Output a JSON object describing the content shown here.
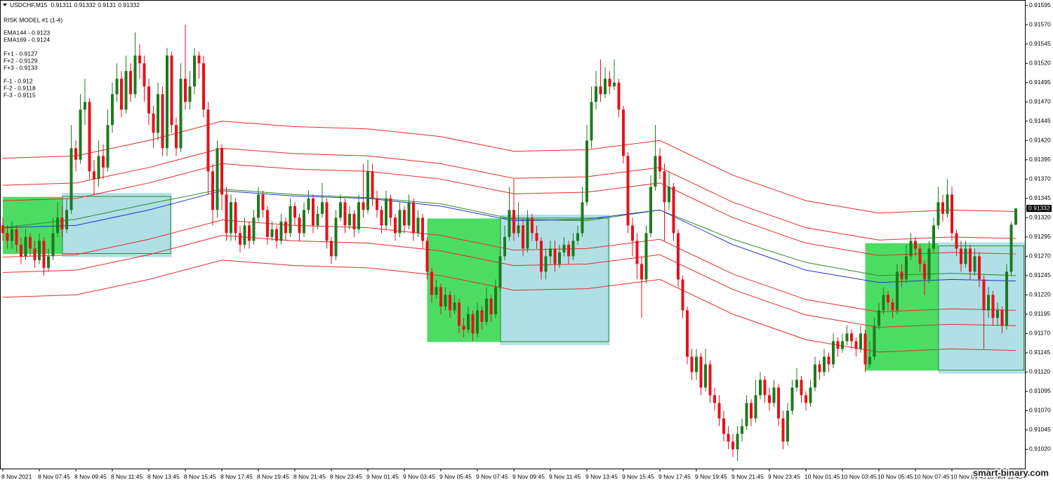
{
  "chart_data": {
    "type": "candlestick",
    "symbol": "USDCHF,M15",
    "info": [
      "RISK MODEL #1 (1-4)",
      "EMA144 - 0.9123",
      "EMA169 - 0.9124",
      "F+1 - 0.9127",
      "F+2 - 0.9129",
      "F+3 - 0.9133",
      "F-1 - 0.912",
      "F-2 - 0.9118",
      "F-3 - 0.9115"
    ],
    "watermark": "smart-binary.com",
    "up_color": "#1d7a1d",
    "down_color": "#e8101a",
    "ylim": [
      0.90995,
      0.91602
    ],
    "yticks": [
      0.91595,
      {
        "value": 0.9157,
        "label": "0.91570"
      },
      0.91545,
      {
        "value": 0.9152,
        "label": "0.91520"
      },
      0.91495,
      {
        "value": 0.9147,
        "label": "0.91470"
      },
      0.91445,
      {
        "value": 0.9142,
        "label": "0.91420"
      },
      0.91395,
      {
        "value": 0.9137,
        "label": "0.91370"
      },
      0.91345,
      {
        "value": 0.9132,
        "label": "0.91320"
      },
      0.91295,
      {
        "value": 0.9127,
        "label": "0.91270"
      },
      0.91245,
      {
        "value": 0.9122,
        "label": "0.91220"
      },
      0.91195,
      {
        "value": 0.9117,
        "label": "0.91170"
      },
      0.91145,
      {
        "value": 0.9112,
        "label": "0.91120"
      },
      0.91095,
      {
        "value": 0.9107,
        "label": "0.91070"
      },
      0.91045,
      {
        "value": 0.9102,
        "label": "0.91020"
      }
    ],
    "xticks": [
      {
        "value": 0,
        "label": "8 Nov 2021"
      },
      {
        "value": 8,
        "label": "8 Nov 07:45"
      },
      {
        "value": 16,
        "label": "8 Nov 09:45"
      },
      {
        "value": 24,
        "label": "8 Nov 11:45"
      },
      {
        "value": 32,
        "label": "8 Nov 13:45"
      },
      {
        "value": 40,
        "label": "8 Nov 15:45"
      },
      {
        "value": 48,
        "label": "8 Nov 17:45"
      },
      {
        "value": 56,
        "label": "8 Nov 19:45"
      },
      {
        "value": 64,
        "label": "8 Nov 21:45"
      },
      {
        "value": 72,
        "label": "8 Nov 23:45"
      },
      {
        "value": 80,
        "label": "9 Nov 01:45"
      },
      {
        "value": 88,
        "label": "9 Nov 03:45"
      },
      {
        "value": 96,
        "label": "9 Nov 05:45"
      },
      {
        "value": 104,
        "label": "9 Nov 07:45"
      },
      {
        "value": 112,
        "label": "9 Nov 09:45"
      },
      {
        "value": 120,
        "label": "9 Nov 11:45"
      },
      {
        "value": 128,
        "label": "9 Nov 13:45"
      },
      {
        "value": 136,
        "label": "9 Nov 15:45"
      },
      {
        "value": 144,
        "label": "9 Nov 17:45"
      },
      {
        "value": 152,
        "label": "9 Nov 19:45"
      },
      {
        "value": 160,
        "label": "9 Nov 21:45"
      },
      {
        "value": 168,
        "label": "9 Nov 23:45"
      },
      {
        "value": 176,
        "label": "10 Nov 01:45"
      },
      {
        "value": 184,
        "label": "10 Nov 03:45"
      },
      {
        "value": 192,
        "label": "10 Nov 05:45"
      },
      {
        "value": 200,
        "label": "10 Nov 07:45"
      },
      {
        "value": 208,
        "label": "10 Nov 09:45"
      },
      {
        "value": 216,
        "label": "10 Nov 11:45"
      }
    ],
    "first_open": 0.9131,
    "close": [
      0.913,
      0.9129,
      0.91305,
      0.91285,
      0.9127,
      0.91295,
      0.9128,
      0.91265,
      0.9129,
      0.91255,
      0.9127,
      0.913,
      0.9132,
      0.91305,
      0.9133,
      0.9141,
      0.91395,
      0.9146,
      0.9147,
      0.9138,
      0.9137,
      0.914,
      0.91385,
      0.9144,
      0.9148,
      0.915,
      0.9146,
      0.9151,
      0.9148,
      0.9153,
      0.9152,
      0.9149,
      0.91455,
      0.9143,
      0.9148,
      0.9141,
      0.9153,
      0.9144,
      0.9141,
      0.915,
      0.9147,
      0.9149,
      0.9153,
      0.9152,
      0.9146,
      0.9138,
      0.9133,
      0.9141,
      0.9135,
      0.913,
      0.9134,
      0.913,
      0.91285,
      0.9131,
      0.9129,
      0.9132,
      0.9135,
      0.9133,
      0.91295,
      0.91305,
      0.9129,
      0.91315,
      0.913,
      0.91335,
      0.9132,
      0.913,
      0.9133,
      0.91345,
      0.9131,
      0.91325,
      0.9134,
      0.9129,
      0.9127,
      0.9132,
      0.9134,
      0.9131,
      0.91325,
      0.91305,
      0.9134,
      0.9133,
      0.9138,
      0.91345,
      0.9133,
      0.9131,
      0.91345,
      0.9132,
      0.913,
      0.9133,
      0.9131,
      0.9134,
      0.913,
      0.9132,
      0.9129,
      0.9125,
      0.9122,
      0.9123,
      0.91205,
      0.9122,
      0.912,
      0.9121,
      0.9118,
      0.91175,
      0.91195,
      0.9117,
      0.912,
      0.91185,
      0.91215,
      0.91195,
      0.9123,
      0.9127,
      0.91295,
      0.9133,
      0.913,
      0.9131,
      0.9128,
      0.9132,
      0.913,
      0.9129,
      0.9125,
      0.9127,
      0.9128,
      0.9126,
      0.91275,
      0.91285,
      0.9127,
      0.9129,
      0.913,
      0.9134,
      0.9142,
      0.9147,
      0.9149,
      0.9148,
      0.915,
      0.9149,
      0.91495,
      0.9146,
      0.914,
      0.9131,
      0.9129,
      0.9126,
      0.9124,
      0.913,
      0.9136,
      0.914,
      0.9138,
      0.9134,
      0.9136,
      0.913,
      0.9124,
      0.912,
      0.9114,
      0.9112,
      0.9114,
      0.911,
      0.9113,
      0.9109,
      0.9108,
      0.9106,
      0.9104,
      0.9103,
      0.9102,
      0.9104,
      0.9105,
      0.9108,
      0.9106,
      0.9109,
      0.9111,
      0.9109,
      0.9108,
      0.911,
      0.9106,
      0.9103,
      0.9107,
      0.911,
      0.9111,
      0.9109,
      0.9108,
      0.911,
      0.9113,
      0.9112,
      0.9114,
      0.9113,
      0.9116,
      0.9115,
      0.9116,
      0.9117,
      0.9116,
      0.9115,
      0.9117,
      0.9113,
      0.9114,
      0.9118,
      0.912,
      0.9122,
      0.9121,
      0.912,
      0.9125,
      0.9124,
      0.9127,
      0.9129,
      0.9128,
      0.9126,
      0.9124,
      0.9128,
      0.9131,
      0.9134,
      0.91325,
      0.9135,
      0.913,
      0.9128,
      0.9126,
      0.9128,
      0.9125,
      0.9127,
      0.9124,
      0.912,
      0.9122,
      0.9119,
      0.912,
      0.9118,
      0.9125,
      0.91311,
      0.91332
    ],
    "high": [
      0.9132,
      0.9131,
      0.91315,
      0.9131,
      0.91295,
      0.91305,
      0.913,
      0.9129,
      0.913,
      0.91295,
      0.9128,
      0.9132,
      0.9134,
      0.91335,
      0.91345,
      0.9144,
      0.9142,
      0.9148,
      0.915,
      0.91475,
      0.91395,
      0.9142,
      0.91415,
      0.9146,
      0.91495,
      0.9152,
      0.9151,
      0.9153,
      0.9152,
      0.9156,
      0.91545,
      0.9153,
      0.915,
      0.91465,
      0.91495,
      0.9149,
      0.9154,
      0.91535,
      0.9145,
      0.9152,
      0.9157,
      0.9151,
      0.9154,
      0.91535,
      0.9153,
      0.9147,
      0.9139,
      0.9142,
      0.91415,
      0.9136,
      0.9135,
      0.91345,
      0.9131,
      0.9132,
      0.91315,
      0.9133,
      0.9136,
      0.91355,
      0.91335,
      0.91315,
      0.9131,
      0.91325,
      0.9132,
      0.91345,
      0.9134,
      0.91325,
      0.9134,
      0.91355,
      0.9135,
      0.91335,
      0.91365,
      0.91345,
      0.91295,
      0.9133,
      0.9135,
      0.91345,
      0.91335,
      0.9133,
      0.9135,
      0.9139,
      0.91395,
      0.9139,
      0.91355,
      0.91335,
      0.91355,
      0.9135,
      0.91325,
      0.9134,
      0.91335,
      0.9135,
      0.91345,
      0.9133,
      0.91325,
      0.91295,
      0.91255,
      0.9124,
      0.91235,
      0.9123,
      0.91225,
      0.9122,
      0.91215,
      0.9119,
      0.91205,
      0.912,
      0.9121,
      0.91205,
      0.9123,
      0.9122,
      0.9124,
      0.9128,
      0.9131,
      0.9136,
      0.9137,
      0.9134,
      0.9132,
      0.9133,
      0.91325,
      0.9131,
      0.91295,
      0.9128,
      0.9129,
      0.9129,
      0.91285,
      0.91295,
      0.9129,
      0.913,
      0.9131,
      0.9136,
      0.9144,
      0.9149,
      0.9151,
      0.91525,
      0.91515,
      0.9151,
      0.91525,
      0.915,
      0.91465,
      0.91405,
      0.9132,
      0.913,
      0.9127,
      0.9131,
      0.91375,
      0.9144,
      0.9141,
      0.9139,
      0.9138,
      0.91365,
      0.91305,
      0.91245,
      0.91205,
      0.9115,
      0.9115,
      0.91145,
      0.9115,
      0.91135,
      0.911,
      0.9109,
      0.9107,
      0.9105,
      0.9104,
      0.9105,
      0.9106,
      0.9109,
      0.91085,
      0.9111,
      0.9112,
      0.91115,
      0.911,
      0.9111,
      0.91105,
      0.9107,
      0.9108,
      0.9111,
      0.91125,
      0.91115,
      0.91095,
      0.9111,
      0.9114,
      0.91135,
      0.9115,
      0.91145,
      0.9117,
      0.91165,
      0.9117,
      0.9118,
      0.91175,
      0.91165,
      0.9118,
      0.91175,
      0.9116,
      0.9119,
      0.9121,
      0.9123,
      0.91225,
      0.91215,
      0.9126,
      0.9126,
      0.91285,
      0.913,
      0.91295,
      0.91285,
      0.91265,
      0.9129,
      0.9132,
      0.9136,
      0.9135,
      0.9137,
      0.9136,
      0.91305,
      0.9129,
      0.9129,
      0.91285,
      0.9128,
      0.91275,
      0.91245,
      0.9123,
      0.91225,
      0.9121,
      0.91205,
      0.9126,
      0.91315,
      0.91332
    ],
    "low": [
      0.9129,
      0.9128,
      0.9128,
      0.91275,
      0.9126,
      0.91265,
      0.9127,
      0.91255,
      0.9126,
      0.91245,
      0.9125,
      0.91265,
      0.91295,
      0.91295,
      0.913,
      0.91325,
      0.9138,
      0.9139,
      0.9144,
      0.9137,
      0.9135,
      0.9136,
      0.9137,
      0.9138,
      0.9143,
      0.9147,
      0.9145,
      0.91455,
      0.9147,
      0.91475,
      0.915,
      0.9147,
      0.9144,
      0.9141,
      0.9142,
      0.914,
      0.914,
      0.9143,
      0.914,
      0.91405,
      0.9146,
      0.9146,
      0.9148,
      0.915,
      0.9145,
      0.9135,
      0.9131,
      0.9132,
      0.9133,
      0.9129,
      0.9129,
      0.9129,
      0.91275,
      0.9128,
      0.9128,
      0.91285,
      0.91315,
      0.9132,
      0.91285,
      0.9129,
      0.9128,
      0.91285,
      0.9129,
      0.91295,
      0.9131,
      0.9129,
      0.91295,
      0.91325,
      0.913,
      0.91305,
      0.9132,
      0.9128,
      0.9126,
      0.91265,
      0.91315,
      0.913,
      0.91305,
      0.91295,
      0.913,
      0.9132,
      0.91325,
      0.91335,
      0.9132,
      0.913,
      0.91305,
      0.9131,
      0.9129,
      0.91295,
      0.913,
      0.91305,
      0.9129,
      0.91295,
      0.9128,
      0.9124,
      0.9121,
      0.91215,
      0.91195,
      0.912,
      0.9119,
      0.91195,
      0.9117,
      0.91165,
      0.9117,
      0.9116,
      0.91165,
      0.91175,
      0.9118,
      0.91185,
      0.9119,
      0.91225,
      0.91265,
      0.9129,
      0.9129,
      0.91295,
      0.9127,
      0.91275,
      0.9129,
      0.9128,
      0.9124,
      0.9124,
      0.9126,
      0.9125,
      0.91255,
      0.9127,
      0.9126,
      0.91265,
      0.91285,
      0.91295,
      0.91335,
      0.9141,
      0.9146,
      0.9147,
      0.91475,
      0.9148,
      0.91485,
      0.9145,
      0.9139,
      0.913,
      0.9127,
      0.9124,
      0.9119,
      0.91235,
      0.91295,
      0.91355,
      0.9137,
      0.9129,
      0.9133,
      0.9129,
      0.9123,
      0.9119,
      0.9113,
      0.9111,
      0.9111,
      0.9109,
      0.91095,
      0.9108,
      0.9107,
      0.9105,
      0.9103,
      0.9102,
      0.9101,
      0.91005,
      0.9103,
      0.91045,
      0.9105,
      0.91055,
      0.91085,
      0.9108,
      0.9107,
      0.91075,
      0.9105,
      0.9102,
      0.91025,
      0.91065,
      0.91095,
      0.9108,
      0.9107,
      0.91075,
      0.91095,
      0.9111,
      0.91115,
      0.9112,
      0.91125,
      0.9114,
      0.91145,
      0.91155,
      0.9115,
      0.9114,
      0.91145,
      0.9112,
      0.91125,
      0.91135,
      0.91175,
      0.91195,
      0.912,
      0.9119,
      0.91195,
      0.9123,
      0.91235,
      0.91265,
      0.9127,
      0.9125,
      0.9122,
      0.91235,
      0.91275,
      0.91305,
      0.91315,
      0.9132,
      0.9129,
      0.9127,
      0.9125,
      0.91255,
      0.9124,
      0.91245,
      0.9123,
      0.9115,
      0.9119,
      0.9118,
      0.9118,
      0.9117,
      0.91175,
      0.91245,
      0.9131
    ],
    "line_x": [
      0,
      16,
      32,
      48,
      64,
      80,
      96,
      112,
      128,
      144,
      160,
      176,
      192,
      208,
      222
    ],
    "lines": [
      {
        "color": "#e8282a",
        "values": [
          0.91397,
          0.914,
          0.9142,
          0.91445,
          0.91438,
          0.91435,
          0.91425,
          0.91406,
          0.91408,
          0.9142,
          0.91375,
          0.91342,
          0.91326,
          0.9133,
          0.91328
        ]
      },
      {
        "color": "#e8282a",
        "values": [
          0.91362,
          0.91365,
          0.91385,
          0.9141,
          0.91403,
          0.914,
          0.9139,
          0.91371,
          0.91373,
          0.91385,
          0.9134,
          0.91307,
          0.91291,
          0.91295,
          0.91293
        ]
      },
      {
        "color": "#e8282a",
        "values": [
          0.91342,
          0.91345,
          0.91365,
          0.9139,
          0.91383,
          0.9138,
          0.9137,
          0.91351,
          0.91353,
          0.91365,
          0.9132,
          0.91287,
          0.91271,
          0.91275,
          0.91273
        ]
      },
      {
        "color": "#e8282a",
        "values": [
          0.91269,
          0.91272,
          0.91292,
          0.91317,
          0.9131,
          0.91307,
          0.91297,
          0.91278,
          0.9128,
          0.91292,
          0.91247,
          0.91214,
          0.91198,
          0.91202,
          0.912
        ]
      },
      {
        "color": "#e8282a",
        "values": [
          0.91249,
          0.91252,
          0.91272,
          0.91297,
          0.9129,
          0.91287,
          0.91277,
          0.91258,
          0.9126,
          0.91272,
          0.91227,
          0.91194,
          0.91178,
          0.91182,
          0.9118
        ]
      },
      {
        "color": "#e8282a",
        "values": [
          0.91217,
          0.9122,
          0.9124,
          0.91265,
          0.91258,
          0.91255,
          0.91245,
          0.91226,
          0.91228,
          0.9124,
          0.91195,
          0.91162,
          0.91146,
          0.9115,
          0.91148
        ]
      },
      {
        "color": "#2a8a2a",
        "values": [
          0.91307,
          0.91318,
          0.91338,
          0.91357,
          0.9135,
          0.91346,
          0.91338,
          0.91318,
          0.91316,
          0.9133,
          0.91292,
          0.91262,
          0.91245,
          0.91248,
          0.91245
        ]
      },
      {
        "color": "#2233cc",
        "values": [
          0.91307,
          0.9131,
          0.9133,
          0.91355,
          0.91348,
          0.91345,
          0.91335,
          0.91316,
          0.91318,
          0.9133,
          0.91285,
          0.91252,
          0.91236,
          0.9124,
          0.91238
        ]
      }
    ],
    "zones": [
      {
        "color": "#4cdc64",
        "x": [
          0,
          13
        ],
        "y": [
          0.91273,
          0.91347
        ]
      },
      {
        "color": "#b0e0e6",
        "border": "#2a8a2a",
        "x": [
          13,
          37
        ],
        "y": [
          0.91269,
          0.91352
        ]
      },
      {
        "color": "#4cdc64",
        "x": [
          93,
          109
        ],
        "y": [
          0.91159,
          0.91319
        ]
      },
      {
        "color": "#b0e0e6",
        "border": "#2a8a2a",
        "x": [
          109,
          133
        ],
        "y": [
          0.91155,
          0.91324
        ]
      },
      {
        "color": "#4cdc64",
        "x": [
          189,
          205
        ],
        "y": [
          0.91122,
          0.91287
        ]
      },
      {
        "color": "#b0e0e6",
        "border": "#2a8a2a",
        "x": [
          205,
          224
        ],
        "y": [
          0.91118,
          0.91288
        ]
      }
    ]
  }
}
